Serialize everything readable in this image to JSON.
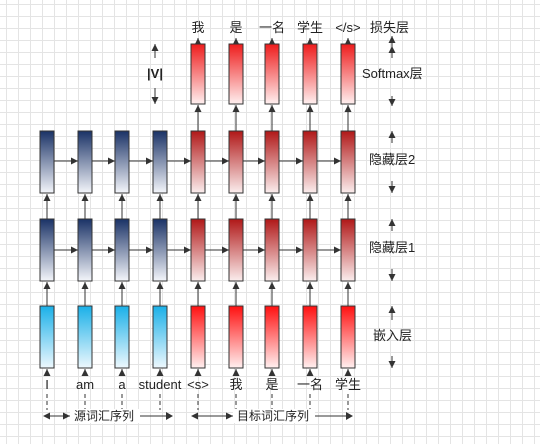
{
  "labels": {
    "loss_layer": "损失层",
    "softmax_layer": "Softmax层",
    "hidden_layer_2": "隐藏层2",
    "hidden_layer_1": "隐藏层1",
    "embedding_layer": "嵌入层",
    "vocab_size": "|V|",
    "source_sequence": "源词汇序列",
    "target_sequence": "目标词汇序列"
  },
  "source_tokens": [
    "I",
    "am",
    "a",
    "student"
  ],
  "target_inputs": [
    "<s>",
    "我",
    "是",
    "一名",
    "学生"
  ],
  "target_outputs": [
    "我",
    "是",
    "一名",
    "学生",
    "</s>"
  ],
  "colors": {
    "encoder_hidden": "#1a3266",
    "encoder_embedding": "#1ab0e8",
    "decoder_hidden": "#b01818",
    "decoder_embedding": "#ff1010",
    "decoder_softmax": "#ee1c1c",
    "grid": "#e4e4e4",
    "arrow": "#333333"
  }
}
